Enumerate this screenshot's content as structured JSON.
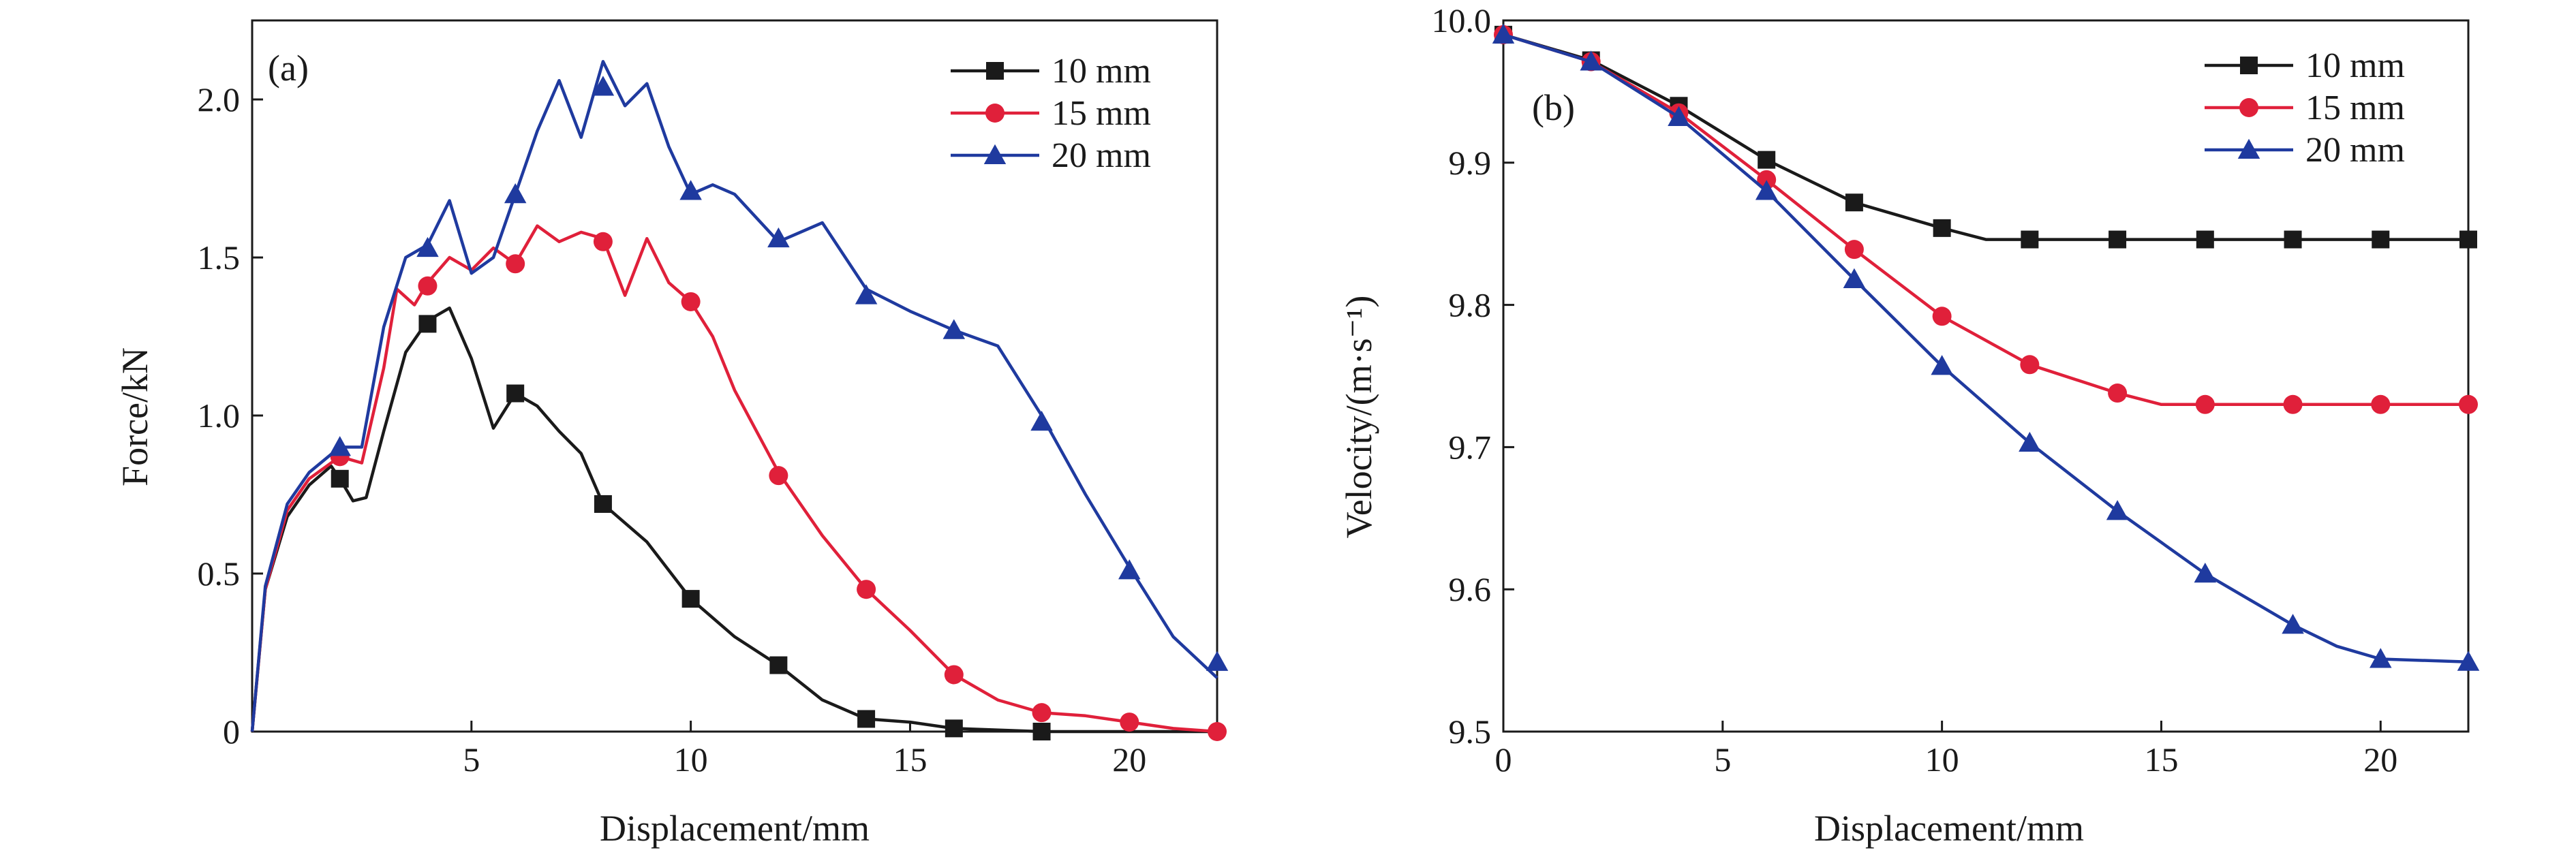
{
  "figure": {
    "panels": [
      {
        "tag": "(a)"
      },
      {
        "tag": "(b)"
      }
    ]
  },
  "colors": {
    "10 mm": "#1a1a1a",
    "15 mm": "#e0203a",
    "20 mm": "#1f3a9f"
  },
  "chart_data": [
    {
      "type": "line",
      "panel": "(a)",
      "xlabel": "Displacement/mm",
      "ylabel": "Force/kN",
      "xlim": [
        0,
        22
      ],
      "ylim": [
        0,
        2.25
      ],
      "xticks": [
        5,
        10,
        15,
        20
      ],
      "yticks": [
        0,
        0.5,
        1.0,
        1.5,
        2.0
      ],
      "ytick_labels": [
        "0",
        "0.5",
        "1.0",
        "1.5",
        "2.0"
      ],
      "legend_position": "top-right",
      "series": [
        {
          "name": "10 mm",
          "marker": "square",
          "x": [
            0,
            0.3,
            0.8,
            1.3,
            1.8,
            2.0,
            2.3,
            2.6,
            3.0,
            3.5,
            4.0,
            4.5,
            5.0,
            5.5,
            6.0,
            6.5,
            7.0,
            7.5,
            8.0,
            9.0,
            10.0,
            11.0,
            12.0,
            13.0,
            14.0,
            15.0,
            16.0,
            18.0,
            20.0,
            22.0
          ],
          "y": [
            0,
            0.45,
            0.68,
            0.78,
            0.84,
            0.8,
            0.73,
            0.74,
            0.95,
            1.2,
            1.3,
            1.34,
            1.18,
            0.96,
            1.07,
            1.03,
            0.95,
            0.88,
            0.72,
            0.6,
            0.42,
            0.3,
            0.21,
            0.1,
            0.04,
            0.03,
            0.01,
            0.0,
            0.0,
            0.0
          ],
          "marker_x": [
            2,
            4,
            6,
            8,
            10,
            12,
            14,
            16,
            18
          ],
          "marker_y": [
            0.8,
            1.29,
            1.07,
            0.72,
            0.42,
            0.21,
            0.04,
            0.01,
            0.0
          ]
        },
        {
          "name": "15 mm",
          "marker": "circle",
          "x": [
            0,
            0.3,
            0.8,
            1.3,
            2.0,
            2.5,
            3.0,
            3.3,
            3.7,
            4.0,
            4.5,
            5.0,
            5.5,
            6.0,
            6.5,
            7.0,
            7.5,
            8.0,
            8.5,
            9.0,
            9.5,
            10.0,
            10.5,
            11.0,
            12.0,
            13.0,
            14.0,
            15.0,
            16.0,
            17.0,
            18.0,
            19.0,
            20.0,
            21.0,
            22.0
          ],
          "y": [
            0,
            0.45,
            0.7,
            0.8,
            0.87,
            0.85,
            1.15,
            1.4,
            1.35,
            1.42,
            1.5,
            1.46,
            1.53,
            1.48,
            1.6,
            1.55,
            1.58,
            1.56,
            1.38,
            1.56,
            1.42,
            1.36,
            1.25,
            1.08,
            0.82,
            0.62,
            0.45,
            0.32,
            0.18,
            0.1,
            0.06,
            0.05,
            0.03,
            0.01,
            0.0
          ],
          "marker_x": [
            2,
            4,
            6,
            8,
            10,
            12,
            14,
            16,
            18,
            20,
            22
          ],
          "marker_y": [
            0.87,
            1.41,
            1.48,
            1.55,
            1.36,
            0.81,
            0.45,
            0.18,
            0.06,
            0.03,
            0.0
          ]
        },
        {
          "name": "20 mm",
          "marker": "triangle",
          "x": [
            0,
            0.3,
            0.8,
            1.3,
            2.0,
            2.5,
            3.0,
            3.5,
            4.0,
            4.5,
            5.0,
            5.5,
            6.0,
            6.5,
            7.0,
            7.5,
            8.0,
            8.5,
            9.0,
            9.5,
            10.0,
            10.5,
            11.0,
            12.0,
            13.0,
            14.0,
            15.0,
            16.0,
            17.0,
            18.0,
            19.0,
            20.0,
            21.0,
            22.0
          ],
          "y": [
            0,
            0.46,
            0.72,
            0.82,
            0.9,
            0.9,
            1.28,
            1.5,
            1.54,
            1.68,
            1.45,
            1.5,
            1.7,
            1.9,
            2.06,
            1.88,
            2.12,
            1.98,
            2.05,
            1.85,
            1.7,
            1.73,
            1.7,
            1.55,
            1.61,
            1.4,
            1.33,
            1.27,
            1.22,
            1.0,
            0.75,
            0.52,
            0.3,
            0.17
          ],
          "marker_x": [
            2,
            4,
            6,
            8,
            10,
            12,
            14,
            16,
            18,
            20,
            22
          ],
          "marker_y": [
            0.9,
            1.53,
            1.7,
            2.04,
            1.71,
            1.56,
            1.38,
            1.27,
            0.98,
            0.51,
            0.22
          ]
        }
      ]
    },
    {
      "type": "line",
      "panel": "(b)",
      "xlabel": "Displacement/mm",
      "ylabel": "Velocity/(m·s⁻¹)",
      "xlim": [
        0,
        22
      ],
      "ylim": [
        9.5,
        10.0
      ],
      "xticks": [
        0,
        5,
        10,
        15,
        20
      ],
      "yticks": [
        9.5,
        9.6,
        9.7,
        9.8,
        9.9,
        10.0
      ],
      "ytick_labels": [
        "9.5",
        "9.6",
        "9.7",
        "9.8",
        "9.9",
        "10.0"
      ],
      "legend_position": "top-right",
      "series": [
        {
          "name": "10 mm",
          "marker": "square",
          "x": [
            0,
            2,
            4,
            6,
            8,
            10,
            11,
            12,
            14,
            16,
            18,
            20,
            22
          ],
          "y": [
            9.99,
            9.972,
            9.94,
            9.902,
            9.872,
            9.854,
            9.846,
            9.846,
            9.846,
            9.846,
            9.846,
            9.846,
            9.846
          ],
          "marker_x": [
            0,
            2,
            4,
            6,
            8,
            10,
            12,
            14,
            16,
            18,
            20,
            22
          ],
          "marker_y": [
            9.99,
            9.972,
            9.94,
            9.902,
            9.872,
            9.854,
            9.846,
            9.846,
            9.846,
            9.846,
            9.846,
            9.846
          ]
        },
        {
          "name": "15 mm",
          "marker": "circle",
          "x": [
            0,
            2,
            4,
            6,
            8,
            10,
            12,
            14,
            15,
            16,
            18,
            20,
            22
          ],
          "y": [
            9.99,
            9.971,
            9.935,
            9.888,
            9.839,
            9.792,
            9.758,
            9.738,
            9.73,
            9.73,
            9.73,
            9.73,
            9.73
          ],
          "marker_x": [
            0,
            2,
            4,
            6,
            8,
            10,
            12,
            14,
            16,
            18,
            20,
            22
          ],
          "marker_y": [
            9.99,
            9.971,
            9.935,
            9.888,
            9.839,
            9.792,
            9.758,
            9.738,
            9.73,
            9.73,
            9.73,
            9.73
          ]
        },
        {
          "name": "20 mm",
          "marker": "triangle",
          "x": [
            0,
            2,
            4,
            6,
            8,
            10,
            12,
            14,
            16,
            18,
            19,
            20,
            22
          ],
          "y": [
            9.99,
            9.971,
            9.932,
            9.88,
            9.818,
            9.757,
            9.703,
            9.655,
            9.611,
            9.575,
            9.56,
            9.551,
            9.549
          ],
          "marker_x": [
            0,
            2,
            4,
            6,
            8,
            10,
            12,
            14,
            16,
            18,
            20,
            22
          ],
          "marker_y": [
            9.99,
            9.971,
            9.932,
            9.88,
            9.818,
            9.757,
            9.703,
            9.655,
            9.611,
            9.575,
            9.551,
            9.549
          ]
        }
      ]
    }
  ]
}
